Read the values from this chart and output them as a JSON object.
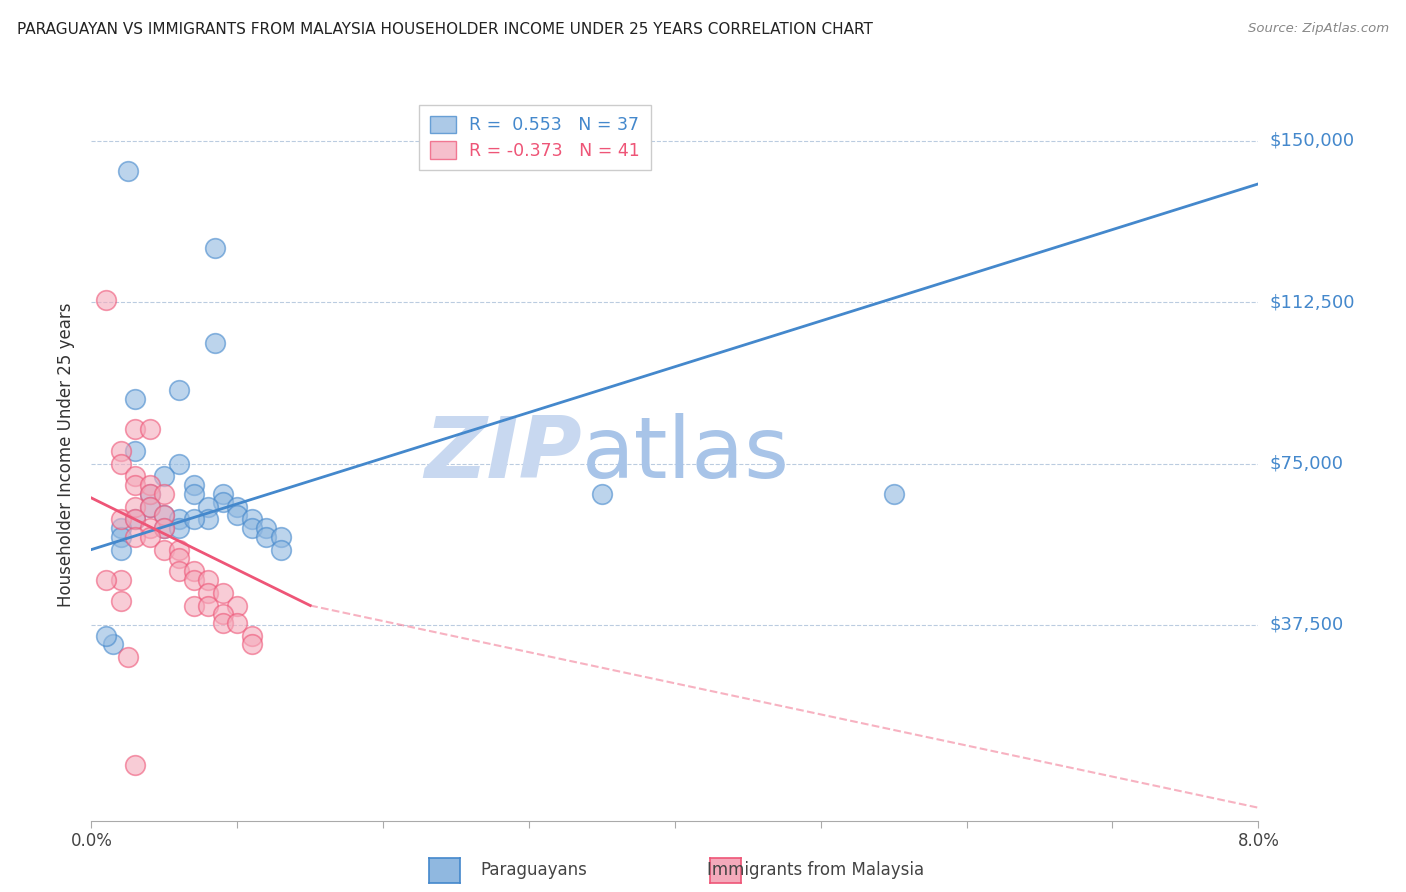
{
  "title": "PARAGUAYAN VS IMMIGRANTS FROM MALAYSIA HOUSEHOLDER INCOME UNDER 25 YEARS CORRELATION CHART",
  "source": "Source: ZipAtlas.com",
  "ylabel": "Householder Income Under 25 years",
  "yticks": [
    0,
    37500,
    75000,
    112500,
    150000
  ],
  "ytick_labels": [
    "",
    "$37,500",
    "$75,000",
    "$112,500",
    "$150,000"
  ],
  "xlim": [
    0.0,
    0.08
  ],
  "ylim": [
    -8000,
    162000
  ],
  "watermark_zip": "ZIP",
  "watermark_atlas": "atlas",
  "blue_R": 0.553,
  "blue_N": 37,
  "pink_R": -0.373,
  "pink_N": 41,
  "blue_color": "#90B8E0",
  "pink_color": "#F4AABB",
  "blue_line_color": "#4488CC",
  "pink_line_color": "#EE5577",
  "blue_scatter": [
    [
      0.0025,
      143000
    ],
    [
      0.0085,
      125000
    ],
    [
      0.0085,
      103000
    ],
    [
      0.006,
      92000
    ],
    [
      0.003,
      90000
    ],
    [
      0.003,
      78000
    ],
    [
      0.006,
      75000
    ],
    [
      0.005,
      72000
    ],
    [
      0.007,
      70000
    ],
    [
      0.007,
      68000
    ],
    [
      0.009,
      68000
    ],
    [
      0.009,
      66000
    ],
    [
      0.01,
      65000
    ],
    [
      0.01,
      63000
    ],
    [
      0.011,
      62000
    ],
    [
      0.011,
      60000
    ],
    [
      0.012,
      60000
    ],
    [
      0.012,
      58000
    ],
    [
      0.013,
      58000
    ],
    [
      0.013,
      55000
    ],
    [
      0.008,
      65000
    ],
    [
      0.008,
      62000
    ],
    [
      0.004,
      68000
    ],
    [
      0.004,
      65000
    ],
    [
      0.005,
      63000
    ],
    [
      0.005,
      60000
    ],
    [
      0.006,
      62000
    ],
    [
      0.006,
      60000
    ],
    [
      0.007,
      62000
    ],
    [
      0.003,
      62000
    ],
    [
      0.002,
      60000
    ],
    [
      0.002,
      58000
    ],
    [
      0.002,
      55000
    ],
    [
      0.0015,
      33000
    ],
    [
      0.001,
      35000
    ],
    [
      0.035,
      68000
    ],
    [
      0.055,
      68000
    ]
  ],
  "pink_scatter": [
    [
      0.001,
      113000
    ],
    [
      0.003,
      83000
    ],
    [
      0.004,
      83000
    ],
    [
      0.002,
      78000
    ],
    [
      0.002,
      75000
    ],
    [
      0.003,
      72000
    ],
    [
      0.003,
      70000
    ],
    [
      0.004,
      70000
    ],
    [
      0.004,
      68000
    ],
    [
      0.005,
      68000
    ],
    [
      0.003,
      65000
    ],
    [
      0.004,
      65000
    ],
    [
      0.005,
      63000
    ],
    [
      0.002,
      62000
    ],
    [
      0.003,
      62000
    ],
    [
      0.004,
      60000
    ],
    [
      0.005,
      60000
    ],
    [
      0.003,
      58000
    ],
    [
      0.004,
      58000
    ],
    [
      0.005,
      55000
    ],
    [
      0.006,
      55000
    ],
    [
      0.006,
      53000
    ],
    [
      0.006,
      50000
    ],
    [
      0.007,
      50000
    ],
    [
      0.007,
      48000
    ],
    [
      0.008,
      48000
    ],
    [
      0.008,
      45000
    ],
    [
      0.007,
      42000
    ],
    [
      0.008,
      42000
    ],
    [
      0.009,
      45000
    ],
    [
      0.01,
      42000
    ],
    [
      0.002,
      48000
    ],
    [
      0.001,
      48000
    ],
    [
      0.002,
      43000
    ],
    [
      0.009,
      40000
    ],
    [
      0.009,
      38000
    ],
    [
      0.01,
      38000
    ],
    [
      0.011,
      35000
    ],
    [
      0.011,
      33000
    ],
    [
      0.0025,
      30000
    ],
    [
      0.003,
      5000
    ]
  ],
  "blue_trend": [
    0.0,
    55000,
    0.08,
    140000
  ],
  "pink_solid_trend": [
    0.0,
    67000,
    0.015,
    42000
  ],
  "pink_dash_trend": [
    0.015,
    42000,
    0.08,
    -5000
  ]
}
